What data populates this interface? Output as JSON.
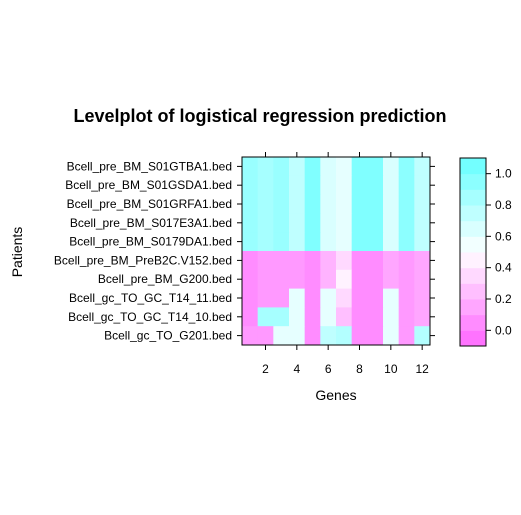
{
  "chart_data": {
    "type": "heatmap",
    "title": "Levelplot of logistical regression prediction",
    "xlabel": "Genes",
    "ylabel": "Patients",
    "x_ticks": [
      2,
      4,
      6,
      8,
      10,
      12
    ],
    "x_range": [
      1,
      12
    ],
    "rows": [
      "Bcell_pre_BM_S01GTBA1.bed",
      "Bcell_pre_BM_S01GSDA1.bed",
      "Bcell_pre_BM_S01GRFA1.bed",
      "Bcell_pre_BM_S017E3A1.bed",
      "Bcell_pre_BM_S0179DA1.bed",
      "Bcell_pre_BM_PreB2C.V152.bed",
      "Bcell_pre_BM_G200.bed",
      "Bcell_gc_TO_GC_T14_11.bed",
      "Bcell_gc_TO_GC_T14_10.bed",
      "Bcell_gc_TO_G201.bed"
    ],
    "columns": [
      1,
      2,
      3,
      4,
      5,
      6,
      7,
      8,
      9,
      10,
      11,
      12
    ],
    "values": [
      [
        0.9,
        0.85,
        0.9,
        0.75,
        1.0,
        0.65,
        0.6,
        1.0,
        1.0,
        0.65,
        0.95,
        0.75
      ],
      [
        0.9,
        0.85,
        0.9,
        0.75,
        1.0,
        0.65,
        0.6,
        1.0,
        1.0,
        0.65,
        0.95,
        0.75
      ],
      [
        0.9,
        0.85,
        0.9,
        0.75,
        1.0,
        0.65,
        0.6,
        1.0,
        1.0,
        0.65,
        0.95,
        0.75
      ],
      [
        0.9,
        0.85,
        0.9,
        0.75,
        1.0,
        0.65,
        0.6,
        1.0,
        1.0,
        0.65,
        0.95,
        0.75
      ],
      [
        0.9,
        0.85,
        0.9,
        0.75,
        1.0,
        0.65,
        0.6,
        1.0,
        1.0,
        0.65,
        0.95,
        0.75
      ],
      [
        0.05,
        0.1,
        0.1,
        0.1,
        0.05,
        0.2,
        0.35,
        0.05,
        0.05,
        0.15,
        0.1,
        0.15
      ],
      [
        0.05,
        0.1,
        0.1,
        0.1,
        0.05,
        0.2,
        0.45,
        0.05,
        0.05,
        0.15,
        0.1,
        0.15
      ],
      [
        0.05,
        0.1,
        0.1,
        0.6,
        0.05,
        0.6,
        0.35,
        0.05,
        0.05,
        0.6,
        0.1,
        0.15
      ],
      [
        0.05,
        0.85,
        0.85,
        0.6,
        0.05,
        0.6,
        0.25,
        0.05,
        0.05,
        0.6,
        0.1,
        0.15
      ],
      [
        0.1,
        0.1,
        0.6,
        0.6,
        0.05,
        0.75,
        0.8,
        0.05,
        0.05,
        0.6,
        0.1,
        0.8
      ]
    ],
    "colorbar": {
      "range": [
        -0.1,
        1.1
      ],
      "ticks": [
        "0.0",
        "0.2",
        "0.4",
        "0.6",
        "0.8",
        "1.0"
      ],
      "low_color": "#ff66ff",
      "mid_color": "#ffffff",
      "high_color": "#66ffff"
    },
    "grid": false,
    "legend": "colorbar-right"
  }
}
